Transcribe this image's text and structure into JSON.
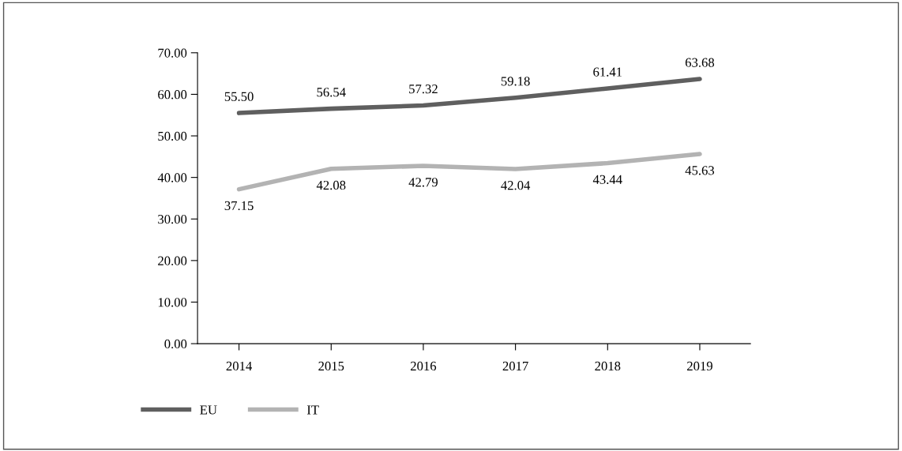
{
  "chart_data": {
    "type": "line",
    "categories": [
      "2014",
      "2015",
      "2016",
      "2017",
      "2018",
      "2019"
    ],
    "series": [
      {
        "name": "EU",
        "color": "#5f5f5f",
        "values": [
          55.5,
          56.54,
          57.32,
          59.18,
          61.41,
          63.68
        ],
        "value_labels": [
          "55.50",
          "56.54",
          "57.32",
          "59.18",
          "61.41",
          "63.68"
        ]
      },
      {
        "name": "IT",
        "color": "#b3b3b3",
        "values": [
          37.15,
          42.08,
          42.79,
          42.04,
          43.44,
          45.63
        ],
        "value_labels": [
          "37.15",
          "42.08",
          "42.79",
          "42.04",
          "43.44",
          "45.63"
        ]
      }
    ],
    "ylim": [
      0,
      70
    ],
    "yticks": [
      {
        "value": 0,
        "label": "0.00"
      },
      {
        "value": 10,
        "label": "10.00"
      },
      {
        "value": 20,
        "label": "20.00"
      },
      {
        "value": 30,
        "label": "30.00"
      },
      {
        "value": 40,
        "label": "40.00"
      },
      {
        "value": 50,
        "label": "50.00"
      },
      {
        "value": 60,
        "label": "60.00"
      },
      {
        "value": 70,
        "label": "70.00"
      }
    ],
    "grid": false,
    "legend": "bottom left",
    "marker": "none",
    "line_style": "solid"
  }
}
